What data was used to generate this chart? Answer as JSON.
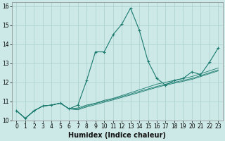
{
  "xlabel": "Humidex (Indice chaleur)",
  "background_color": "#cce9e7",
  "grid_color": "#aacfcc",
  "line_color": "#1a7a6e",
  "xlim": [
    -0.5,
    23.5
  ],
  "ylim": [
    10,
    16.2
  ],
  "xticks": [
    0,
    1,
    2,
    3,
    4,
    5,
    6,
    7,
    8,
    9,
    10,
    11,
    12,
    13,
    14,
    15,
    16,
    17,
    18,
    19,
    20,
    21,
    22,
    23
  ],
  "yticks": [
    10,
    11,
    12,
    13,
    14,
    15,
    16
  ],
  "series_marked": [
    10.5,
    10.1,
    10.5,
    10.75,
    10.8,
    10.9,
    10.6,
    10.8,
    12.1,
    13.6,
    13.6,
    14.5,
    15.05,
    15.9,
    14.75,
    13.1,
    12.2,
    11.85,
    12.1,
    12.2,
    12.55,
    12.4,
    13.05,
    13.8
  ],
  "series_smooth1": [
    10.5,
    10.1,
    10.5,
    10.75,
    10.8,
    10.9,
    10.6,
    10.65,
    10.8,
    10.9,
    11.05,
    11.15,
    11.3,
    11.45,
    11.6,
    11.75,
    11.9,
    12.0,
    12.1,
    12.2,
    12.3,
    12.45,
    12.6,
    12.75
  ],
  "series_smooth2": [
    10.5,
    10.1,
    10.5,
    10.75,
    10.8,
    10.9,
    10.6,
    10.6,
    10.75,
    10.88,
    11.0,
    11.12,
    11.25,
    11.38,
    11.52,
    11.65,
    11.78,
    11.9,
    12.0,
    12.1,
    12.2,
    12.35,
    12.5,
    12.65
  ],
  "series_smooth3": [
    10.5,
    10.1,
    10.5,
    10.75,
    10.8,
    10.9,
    10.6,
    10.55,
    10.7,
    10.82,
    10.95,
    11.07,
    11.2,
    11.33,
    11.46,
    11.6,
    11.73,
    11.85,
    11.95,
    12.05,
    12.15,
    12.3,
    12.45,
    12.6
  ],
  "tick_fontsize": 5.5,
  "xlabel_fontsize": 7.0,
  "linewidth": 0.8,
  "markersize": 3.5
}
